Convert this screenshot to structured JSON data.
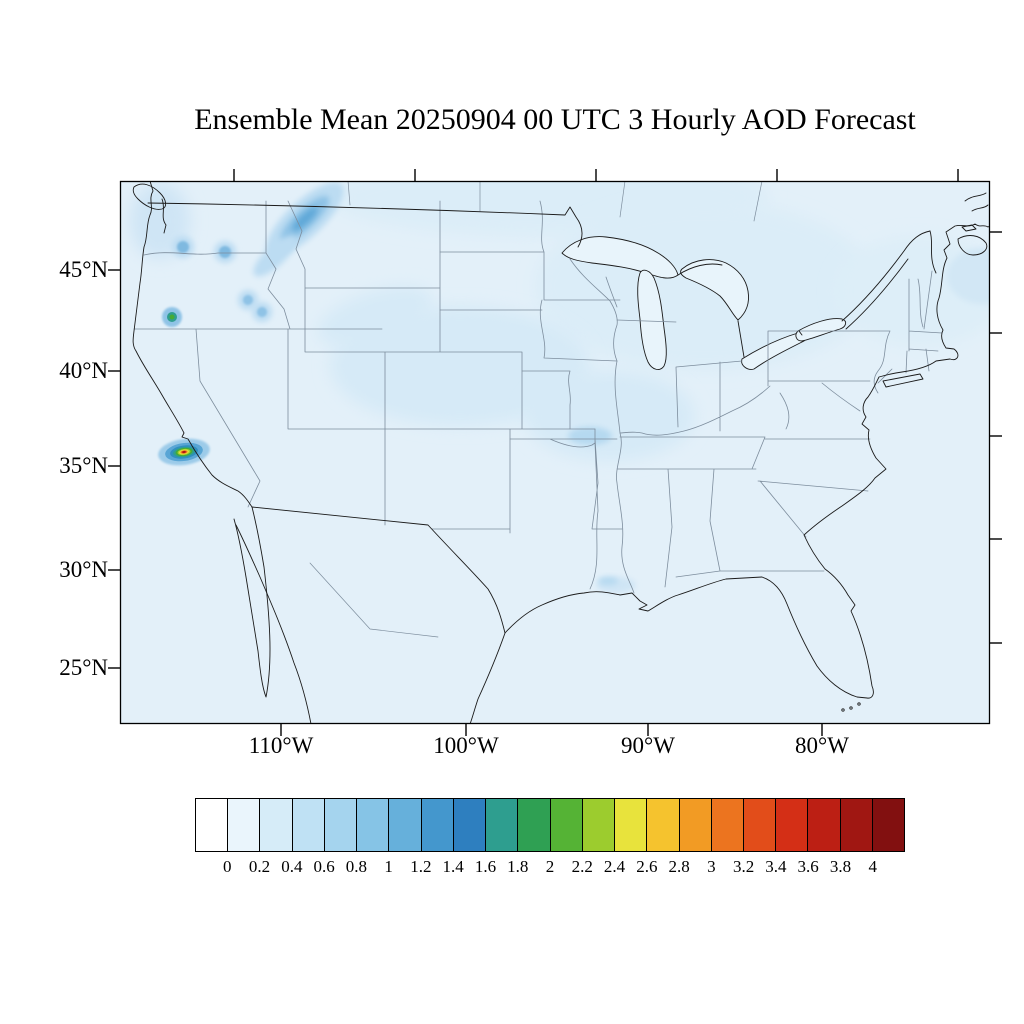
{
  "title": "Ensemble Mean 20250904 00 UTC 3 Hourly AOD Forecast",
  "axes": {
    "lat_labels": [
      "45°N",
      "40°N",
      "35°N",
      "30°N",
      "25°N"
    ],
    "lon_labels": [
      "110°W",
      "100°W",
      "90°W",
      "80°W"
    ]
  },
  "colorbar": {
    "tick_labels": [
      "0",
      "0.2",
      "0.4",
      "0.6",
      "0.8",
      "1",
      "1.2",
      "1.4",
      "1.6",
      "1.8",
      "2",
      "2.2",
      "2.4",
      "2.6",
      "2.8",
      "3",
      "3.2",
      "3.4",
      "3.6",
      "3.8",
      "4"
    ],
    "colors": [
      "#ffffff",
      "#eaf5fc",
      "#d6ecf8",
      "#bfe1f4",
      "#a5d4ee",
      "#86c4e6",
      "#66b0db",
      "#4497cd",
      "#2e7fbf",
      "#2e9e8f",
      "#2fa053",
      "#55b335",
      "#9ccc2e",
      "#e8e33c",
      "#f5c32e",
      "#f29b24",
      "#ec741f",
      "#e24d1a",
      "#d42f16",
      "#bc1f14",
      "#a01712",
      "#821010"
    ]
  },
  "chart_data": {
    "type": "heatmap",
    "title": "Ensemble Mean 20250904 00 UTC 3 Hourly AOD Forecast",
    "variable": "Aerosol Optical Depth (AOD)",
    "region": "Continental United States with southern Canada and northern Mexico",
    "x_ticks": [
      "110°W",
      "100°W",
      "90°W",
      "80°W"
    ],
    "y_ticks": [
      "45°N",
      "40°N",
      "35°N",
      "30°N",
      "25°N"
    ],
    "value_range": [
      0,
      4
    ],
    "contour_interval": 0.2,
    "grid": false,
    "legend_position": "bottom",
    "colorbar_ticks": [
      0,
      0.2,
      0.4,
      0.6,
      0.8,
      1,
      1.2,
      1.4,
      1.6,
      1.8,
      2,
      2.2,
      2.4,
      2.6,
      2.8,
      3,
      3.2,
      3.4,
      3.6,
      3.8,
      4
    ],
    "colorbar_colors": [
      "#ffffff",
      "#eaf5fc",
      "#d6ecf8",
      "#bfe1f4",
      "#a5d4ee",
      "#86c4e6",
      "#66b0db",
      "#4497cd",
      "#2e7fbf",
      "#2e9e8f",
      "#2fa053",
      "#55b335",
      "#9ccc2e",
      "#e8e33c",
      "#f5c32e",
      "#f29b24",
      "#ec741f",
      "#e24d1a",
      "#d42f16",
      "#bc1f14",
      "#a01712",
      "#821010"
    ],
    "background_level": "AOD 0-0.2 (pale blue) over most of the domain including oceans",
    "features": [
      {
        "area": "Central California (San Joaquin Valley)",
        "peak_aod": 3.8,
        "description": "small intense plume with tight concentric contours from 0.2 up through green, yellow, orange and dark red core"
      },
      {
        "area": "Southern Oregon near 42N",
        "peak_aod": 1.6,
        "description": "small green-teal spot with blue halo"
      },
      {
        "area": "Washington / British Columbia",
        "peak_aod": 1.0,
        "description": "elongated smoke streak extending northeast into Canada plus several 0.4-0.8 blue spots"
      },
      {
        "area": "Montana / Northern Plains / Upper Midwest",
        "peak_aod": 0.4,
        "description": "broad faint 0.2-0.4 light blue region"
      },
      {
        "area": "Missouri / Illinois Midwest",
        "peak_aod": 0.6,
        "description": "patch of 0.2-0.4 with small darker core"
      },
      {
        "area": "Great Lakes and Northeast",
        "peak_aod": 0.4,
        "description": "broad very faint 0.2-0.4 region"
      },
      {
        "area": "Louisiana coast",
        "peak_aod": 0.4,
        "description": "small coastal patch"
      }
    ]
  }
}
